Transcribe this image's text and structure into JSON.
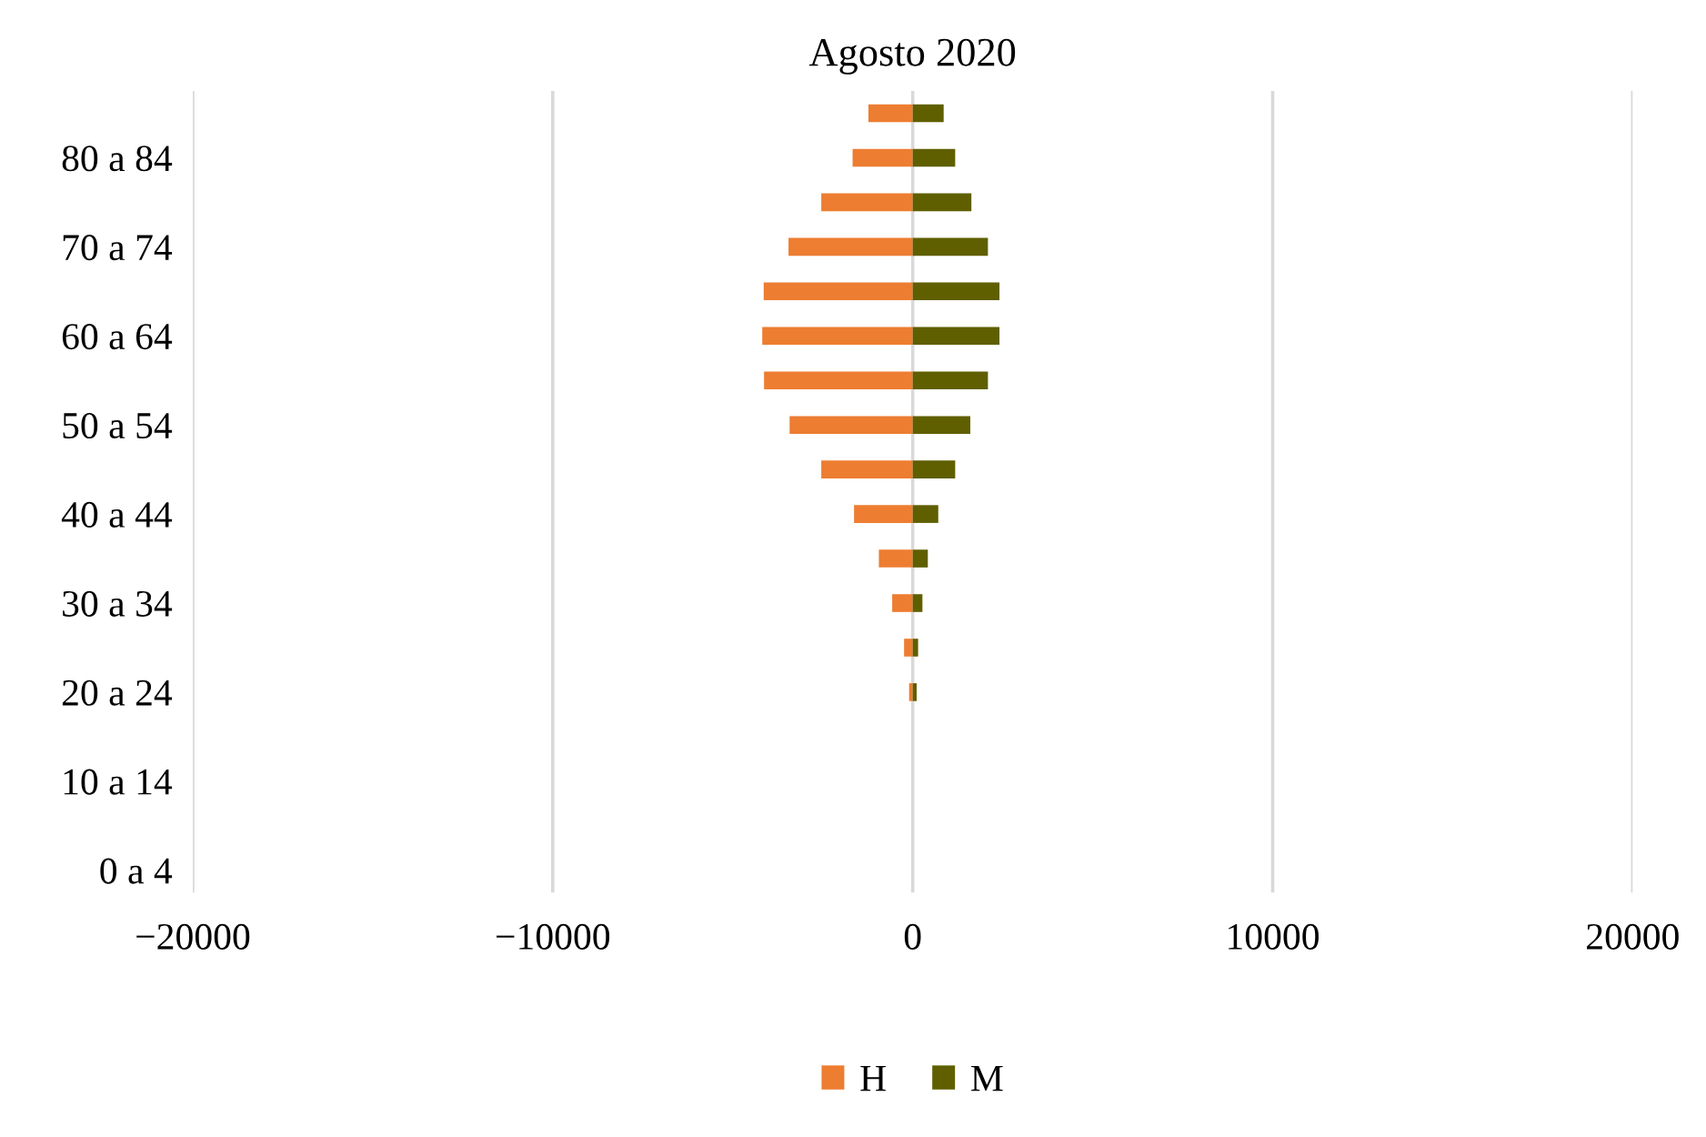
{
  "chart_data": {
    "type": "bar",
    "orientation": "horizontal",
    "title": "Agosto 2020",
    "categories": [
      null,
      "80 a 84",
      null,
      "70 a 74",
      null,
      "60 a 64",
      null,
      "50 a 54",
      null,
      "40 a 44",
      null,
      "30 a 34",
      null,
      "20 a 24",
      null,
      "10 a 14",
      null,
      "0 a 4"
    ],
    "series": [
      {
        "name": "H",
        "color": "#ed7d31",
        "values": [
          -1230,
          -1670,
          -2540,
          -3450,
          -4140,
          -4180,
          -4130,
          -3420,
          -2540,
          -1630,
          -940,
          -570,
          -240,
          -100,
          0,
          0,
          0,
          0
        ]
      },
      {
        "name": "M",
        "color": "#5f5f00",
        "values": [
          860,
          1180,
          1630,
          2090,
          2410,
          2410,
          2090,
          1600,
          1180,
          710,
          420,
          270,
          150,
          110,
          0,
          0,
          0,
          0
        ]
      }
    ],
    "xlim": [
      -20000,
      20000
    ],
    "xticks": [
      {
        "value": -20000,
        "label": "−20000"
      },
      {
        "value": -10000,
        "label": "−10000"
      },
      0,
      10000,
      20000
    ],
    "stacked": true,
    "grid": "x",
    "legend": "bottom"
  }
}
